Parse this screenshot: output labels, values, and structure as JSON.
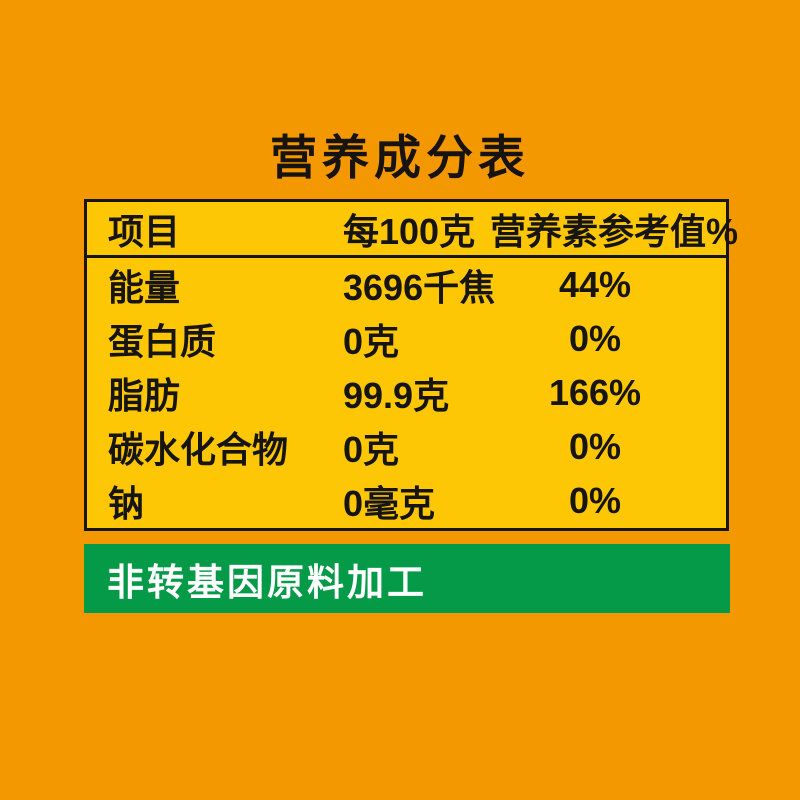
{
  "page": {
    "title": "营养成分表",
    "background_color": "#F49801",
    "text_color": "#171513"
  },
  "nutrition_table": {
    "background_color": "#FDC705",
    "border_color": "#171513",
    "columns": {
      "item": "项目",
      "per_100g": "每100克",
      "nrv": "营养素参考值%"
    },
    "rows": [
      {
        "item": "能量",
        "per_100g": "3696千焦",
        "nrv": "44%"
      },
      {
        "item": "蛋白质",
        "per_100g": "0克",
        "nrv": "0%"
      },
      {
        "item": "脂肪",
        "per_100g": "99.9克",
        "nrv": "166%"
      },
      {
        "item": "碳水化合物",
        "per_100g": "0克",
        "nrv": "0%"
      },
      {
        "item": "钠",
        "per_100g": "0毫克",
        "nrv": "0%"
      }
    ]
  },
  "banner": {
    "label": "非转基因原料加工",
    "background_color": "#049A48",
    "text_color": "#FFFFFF"
  }
}
